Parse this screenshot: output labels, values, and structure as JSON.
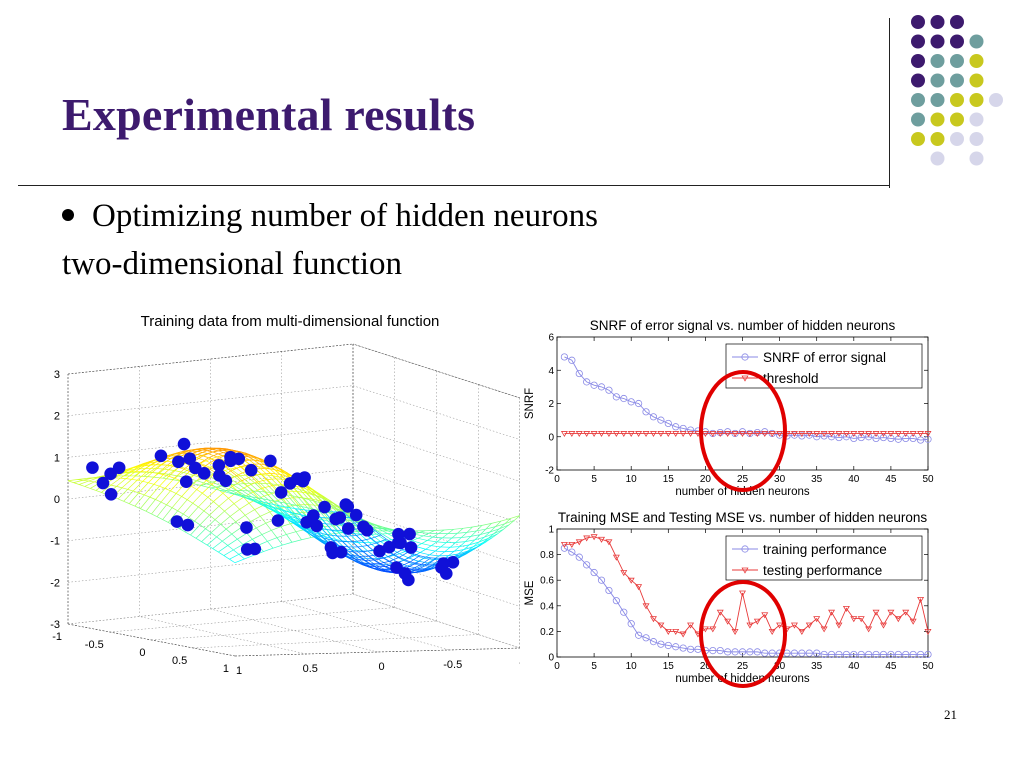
{
  "slide": {
    "title": "Experimental results",
    "bullet": "Optimizing number of hidden neurons",
    "subline": "two-dimensional function",
    "page_number": "21"
  },
  "decor": {
    "dot_colors": [
      "#3d1a6e",
      "#6e9e9e",
      "#c8c81e",
      "#d6d6ea"
    ]
  },
  "chart_data": [
    {
      "type": "surface",
      "title": "Training data from multi-dimensional function",
      "z_ticks": [
        "3",
        "2",
        "1",
        "0",
        "-1",
        "-2",
        "-3"
      ],
      "x_ticks": [
        "1",
        "0.5",
        "0",
        "-0.5",
        "-1"
      ],
      "y_ticks": [
        "-1",
        "-0.5",
        "0",
        "0.5",
        "1"
      ],
      "zlim": [
        -3,
        3
      ],
      "marker_color": "#1010d8"
    },
    {
      "type": "line",
      "title": "SNRF of error signal vs. number of hidden neurons",
      "xlabel": "number of hidden neurons",
      "ylabel": "SNRF",
      "xlim": [
        0,
        50
      ],
      "ylim": [
        -2,
        6
      ],
      "x_ticks": [
        0,
        5,
        10,
        15,
        20,
        25,
        30,
        35,
        40,
        45,
        50
      ],
      "y_ticks": [
        -2,
        0,
        2,
        4,
        6
      ],
      "legend_position": "top-right",
      "x": [
        1,
        2,
        3,
        4,
        5,
        6,
        7,
        8,
        9,
        10,
        11,
        12,
        13,
        14,
        15,
        16,
        17,
        18,
        19,
        20,
        21,
        22,
        23,
        24,
        25,
        26,
        27,
        28,
        29,
        30,
        31,
        32,
        33,
        34,
        35,
        36,
        37,
        38,
        39,
        40,
        41,
        42,
        43,
        44,
        45,
        46,
        47,
        48,
        49,
        50
      ],
      "series": [
        {
          "name": "SNRF of error signal",
          "color": "#8a8ae6",
          "marker": "circle",
          "values": [
            4.8,
            4.6,
            3.8,
            3.3,
            3.1,
            3.0,
            2.8,
            2.4,
            2.3,
            2.1,
            2.0,
            1.5,
            1.2,
            1.0,
            0.8,
            0.6,
            0.5,
            0.4,
            0.35,
            0.3,
            0.2,
            0.25,
            0.3,
            0.2,
            0.3,
            0.2,
            0.25,
            0.3,
            0.2,
            0.1,
            0.05,
            0.1,
            0.05,
            0.1,
            0.0,
            0.05,
            0.0,
            -0.05,
            0.0,
            -0.1,
            -0.05,
            0.0,
            -0.1,
            -0.05,
            -0.1,
            -0.15,
            -0.1,
            -0.1,
            -0.2,
            -0.15
          ]
        },
        {
          "name": "threshold",
          "color": "#e83a3a",
          "marker": "triangle",
          "values": [
            0.2,
            0.2,
            0.2,
            0.2,
            0.2,
            0.2,
            0.2,
            0.2,
            0.2,
            0.2,
            0.2,
            0.2,
            0.2,
            0.2,
            0.2,
            0.2,
            0.2,
            0.2,
            0.2,
            0.2,
            0.2,
            0.2,
            0.2,
            0.2,
            0.2,
            0.2,
            0.2,
            0.2,
            0.2,
            0.2,
            0.2,
            0.2,
            0.2,
            0.2,
            0.2,
            0.2,
            0.2,
            0.2,
            0.2,
            0.2,
            0.2,
            0.2,
            0.2,
            0.2,
            0.2,
            0.2,
            0.2,
            0.2,
            0.2,
            0.2
          ]
        }
      ]
    },
    {
      "type": "line",
      "title": "Training MSE and Testing MSE vs. number of hidden neurons",
      "xlabel": "number of hidden neurons",
      "ylabel": "MSE",
      "xlim": [
        0,
        50
      ],
      "ylim": [
        0,
        1
      ],
      "x_ticks": [
        0,
        5,
        10,
        15,
        20,
        25,
        30,
        35,
        40,
        45,
        50
      ],
      "y_ticks": [
        0,
        0.2,
        0.4,
        0.6,
        0.8,
        1
      ],
      "legend_position": "top-right",
      "x": [
        1,
        2,
        3,
        4,
        5,
        6,
        7,
        8,
        9,
        10,
        11,
        12,
        13,
        14,
        15,
        16,
        17,
        18,
        19,
        20,
        21,
        22,
        23,
        24,
        25,
        26,
        27,
        28,
        29,
        30,
        31,
        32,
        33,
        34,
        35,
        36,
        37,
        38,
        39,
        40,
        41,
        42,
        43,
        44,
        45,
        46,
        47,
        48,
        49,
        50
      ],
      "series": [
        {
          "name": "training performance",
          "color": "#8a8ae6",
          "marker": "circle",
          "values": [
            0.85,
            0.82,
            0.78,
            0.72,
            0.66,
            0.6,
            0.52,
            0.44,
            0.35,
            0.26,
            0.17,
            0.15,
            0.12,
            0.1,
            0.09,
            0.08,
            0.07,
            0.06,
            0.06,
            0.05,
            0.05,
            0.05,
            0.04,
            0.04,
            0.04,
            0.04,
            0.04,
            0.03,
            0.03,
            0.03,
            0.03,
            0.03,
            0.03,
            0.03,
            0.03,
            0.02,
            0.02,
            0.02,
            0.02,
            0.02,
            0.02,
            0.02,
            0.02,
            0.02,
            0.02,
            0.02,
            0.02,
            0.02,
            0.02,
            0.02
          ]
        },
        {
          "name": "testing performance",
          "color": "#e83a3a",
          "marker": "triangle",
          "values": [
            0.88,
            0.88,
            0.9,
            0.93,
            0.94,
            0.92,
            0.9,
            0.78,
            0.66,
            0.6,
            0.55,
            0.4,
            0.3,
            0.25,
            0.2,
            0.2,
            0.18,
            0.25,
            0.18,
            0.22,
            0.22,
            0.35,
            0.28,
            0.2,
            0.5,
            0.25,
            0.28,
            0.33,
            0.2,
            0.25,
            0.22,
            0.25,
            0.2,
            0.25,
            0.3,
            0.22,
            0.35,
            0.25,
            0.38,
            0.3,
            0.3,
            0.22,
            0.35,
            0.25,
            0.35,
            0.3,
            0.35,
            0.28,
            0.45,
            0.2
          ]
        }
      ]
    }
  ]
}
